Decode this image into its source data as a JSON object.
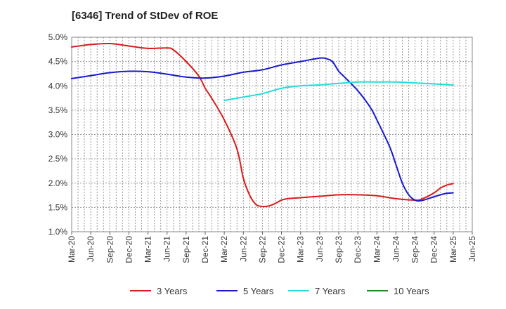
{
  "chart_data": {
    "type": "line",
    "title": "[6346]  Trend of StDev of ROE",
    "xlabel": "",
    "ylabel": "",
    "grid": true,
    "legend_position": "bottom",
    "ylim": [
      1.0,
      5.0
    ],
    "y_ticks": [
      "5.0%",
      "4.5%",
      "4.0%",
      "3.5%",
      "3.0%",
      "2.5%",
      "2.0%",
      "1.5%",
      "1.0%"
    ],
    "x_ticks": [
      "Mar-20",
      "Jun-20",
      "Sep-20",
      "Dec-20",
      "Mar-21",
      "Jun-21",
      "Sep-21",
      "Dec-21",
      "Mar-22",
      "Jun-22",
      "Sep-22",
      "Dec-22",
      "Mar-23",
      "Jun-23",
      "Sep-23",
      "Dec-23",
      "Mar-24",
      "Jun-24",
      "Sep-24",
      "Dec-24",
      "Mar-25",
      "Jun-25"
    ],
    "series": [
      {
        "name": "3 Years",
        "color": "#dd1a1a",
        "points": [
          [
            "Mar-20",
            4.8
          ],
          [
            "Jun-20",
            4.85
          ],
          [
            "Sep-20",
            4.87
          ],
          [
            "Dec-20",
            4.82
          ],
          [
            "Mar-21",
            4.77
          ],
          [
            "Jun-21",
            4.78
          ],
          [
            "Jul-21",
            4.74
          ],
          [
            "Sep-21",
            4.5
          ],
          [
            "Nov-21",
            4.2
          ],
          [
            "Dec-21",
            3.95
          ],
          [
            "Jan-22",
            3.75
          ],
          [
            "Mar-22",
            3.3
          ],
          [
            "May-22",
            2.7
          ],
          [
            "Jun-22",
            2.1
          ],
          [
            "Jul-22",
            1.75
          ],
          [
            "Aug-22",
            1.56
          ],
          [
            "Sep-22",
            1.52
          ],
          [
            "Oct-22",
            1.53
          ],
          [
            "Nov-22",
            1.58
          ],
          [
            "Dec-22",
            1.65
          ],
          [
            "Jan-23",
            1.68
          ],
          [
            "Mar-23",
            1.7
          ],
          [
            "Jun-23",
            1.73
          ],
          [
            "Sep-23",
            1.76
          ],
          [
            "Dec-23",
            1.76
          ],
          [
            "Mar-24",
            1.74
          ],
          [
            "Jun-24",
            1.68
          ],
          [
            "Sep-24",
            1.65
          ],
          [
            "Oct-24",
            1.67
          ],
          [
            "Dec-24",
            1.8
          ],
          [
            "Jan-25",
            1.9
          ],
          [
            "Feb-25",
            1.96
          ],
          [
            "Mar-25",
            1.99
          ]
        ]
      },
      {
        "name": "5 Years",
        "color": "#1a1acc",
        "points": [
          [
            "Mar-20",
            4.15
          ],
          [
            "Jun-20",
            4.21
          ],
          [
            "Sep-20",
            4.27
          ],
          [
            "Dec-20",
            4.3
          ],
          [
            "Mar-21",
            4.29
          ],
          [
            "Jun-21",
            4.24
          ],
          [
            "Sep-21",
            4.18
          ],
          [
            "Dec-21",
            4.16
          ],
          [
            "Mar-22",
            4.2
          ],
          [
            "Jun-22",
            4.28
          ],
          [
            "Sep-22",
            4.33
          ],
          [
            "Dec-22",
            4.43
          ],
          [
            "Mar-23",
            4.5
          ],
          [
            "Jun-23",
            4.57
          ],
          [
            "Jul-23",
            4.56
          ],
          [
            "Aug-23",
            4.5
          ],
          [
            "Sep-23",
            4.3
          ],
          [
            "Oct-23",
            4.17
          ],
          [
            "Dec-23",
            3.9
          ],
          [
            "Feb-24",
            3.55
          ],
          [
            "Mar-24",
            3.3
          ],
          [
            "May-24",
            2.75
          ],
          [
            "Jun-24",
            2.38
          ],
          [
            "Jul-24",
            2.0
          ],
          [
            "Aug-24",
            1.76
          ],
          [
            "Sep-24",
            1.65
          ],
          [
            "Oct-24",
            1.64
          ],
          [
            "Dec-24",
            1.72
          ],
          [
            "Jan-25",
            1.76
          ],
          [
            "Feb-25",
            1.79
          ],
          [
            "Mar-25",
            1.8
          ]
        ]
      },
      {
        "name": "7 Years",
        "color": "#22dddd",
        "points": [
          [
            "Mar-22",
            3.7
          ],
          [
            "Jun-22",
            3.77
          ],
          [
            "Sep-22",
            3.84
          ],
          [
            "Dec-22",
            3.95
          ],
          [
            "Mar-23",
            4.0
          ],
          [
            "Jun-23",
            4.02
          ],
          [
            "Sep-23",
            4.05
          ],
          [
            "Dec-23",
            4.08
          ],
          [
            "Mar-24",
            4.08
          ],
          [
            "Jun-24",
            4.08
          ],
          [
            "Sep-24",
            4.06
          ],
          [
            "Dec-24",
            4.04
          ],
          [
            "Mar-25",
            4.02
          ]
        ]
      },
      {
        "name": "10 Years",
        "color": "#228b22",
        "points": []
      }
    ]
  }
}
